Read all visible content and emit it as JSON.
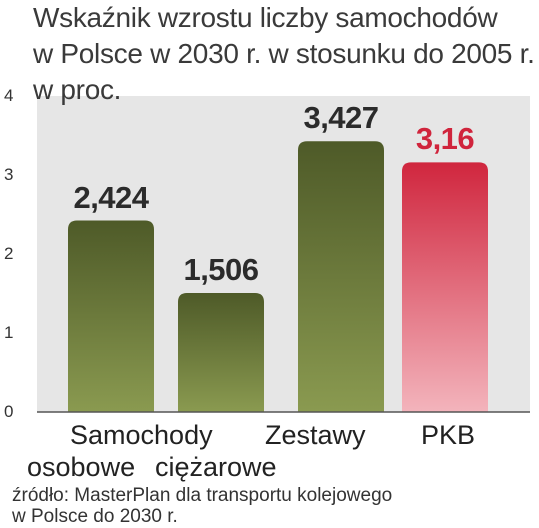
{
  "title_lines": [
    "Wskaźnik wzrostu liczby samochodów",
    "w Polsce w 2030 r. w stosunku do 2005 r.",
    "w proc."
  ],
  "colors": {
    "green": "#6a7a3a",
    "green_dark": "#4a5426",
    "red": "#d8364c",
    "red_light": "#f0a0aa",
    "plot_bg": "#e6e6e6",
    "value_green": "#2b2b2b",
    "value_red": "#d0243c"
  },
  "chart_data": {
    "type": "bar",
    "categories": [
      "Samochody osobowe",
      "Samochody ciężarowe",
      "Zestawy",
      "PKB"
    ],
    "values": [
      2.424,
      1.506,
      3.427,
      3.16
    ],
    "value_labels": [
      "2,424",
      "1,506",
      "3,427",
      "3,16"
    ],
    "bar_colors": [
      "green",
      "green",
      "green",
      "red"
    ],
    "ylim": [
      0,
      4
    ],
    "yticks": [
      "0",
      "1",
      "2",
      "3",
      "4"
    ],
    "xlabel": "",
    "ylabel": "",
    "grid": false
  },
  "category_text": {
    "samochody": "Samochody",
    "osobowe": "osobowe",
    "ciezarowe": "ciężarowe",
    "zestawy": "Zestawy",
    "pkb": "PKB"
  },
  "source_lines": [
    "źródło: MasterPlan dla transportu kolejowego",
    "w Polsce do 2030 r."
  ]
}
